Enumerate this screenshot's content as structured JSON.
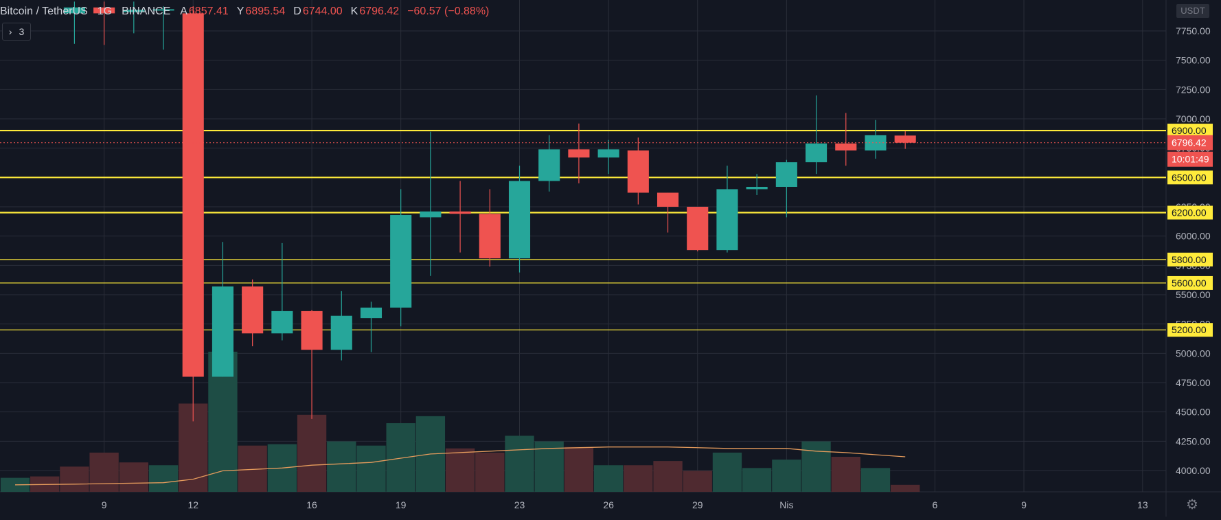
{
  "legend": {
    "symbol": "Bitcoin / TetherUS",
    "interval": "1G",
    "exchange": "BINANCE",
    "open_label": "A",
    "open": "6857.41",
    "high_label": "Y",
    "high": "6895.54",
    "low_label": "D",
    "low": "6744.00",
    "close_label": "K",
    "close": "6796.42",
    "change": "−60.57 (−0.88%)"
  },
  "indicator_toggle": {
    "count": "3",
    "icon": "chevron-right-icon"
  },
  "price_axis": {
    "unit": "USDT"
  },
  "current_price": {
    "label": "6796.42",
    "countdown": "10:01:49",
    "color": "#ef5350"
  },
  "settings_icon": "gear-icon",
  "chart_data": {
    "type": "candlestick",
    "ylim": [
      3850,
      8000
    ],
    "y_ticks": [
      4000,
      4250,
      4500,
      4750,
      5000,
      5250,
      5500,
      5750,
      6000,
      6250,
      6500,
      6750,
      7000,
      7250,
      7500,
      7750
    ],
    "y_tick_labels": [
      "4000.00",
      "4250.00",
      "4500.00",
      "4750.00",
      "5000.00",
      "5250.00",
      "5500.00",
      "5750.00",
      "6000.00",
      "6250.00",
      "6500.00",
      "6750.00",
      "7000.00",
      "7250.00",
      "7500.00",
      "7750.00"
    ],
    "x_tick_labels": [
      {
        "day": 9,
        "label": "9"
      },
      {
        "day": 12,
        "label": "12"
      },
      {
        "day": 16,
        "label": "16"
      },
      {
        "day": 19,
        "label": "19"
      },
      {
        "day": 23,
        "label": "23"
      },
      {
        "day": 26,
        "label": "26"
      },
      {
        "day": 29,
        "label": "29"
      },
      {
        "day": 32,
        "label": "Nis"
      },
      {
        "day": 37,
        "label": "6"
      },
      {
        "day": 40,
        "label": "9"
      },
      {
        "day": 44,
        "label": "13"
      }
    ],
    "day_range": [
      6,
      45.3
    ],
    "candles": [
      {
        "day": 8,
        "open": 7900,
        "high": 8000,
        "low": 7640,
        "close": 7950
      },
      {
        "day": 9,
        "open": 7950,
        "high": 8000,
        "low": 7630,
        "close": 7900
      },
      {
        "day": 10,
        "open": 7910,
        "high": 8000,
        "low": 7730,
        "close": 7930
      },
      {
        "day": 11,
        "open": 7925,
        "high": 7960,
        "low": 7590,
        "close": 7935
      },
      {
        "day": 12,
        "open": 7900,
        "high": 7960,
        "low": 4420,
        "close": 4800
      },
      {
        "day": 13,
        "open": 4800,
        "high": 5950,
        "low": 4800,
        "close": 5570
      },
      {
        "day": 14,
        "open": 5570,
        "high": 5630,
        "low": 5060,
        "close": 5170
      },
      {
        "day": 15,
        "open": 5170,
        "high": 5940,
        "low": 5110,
        "close": 5360
      },
      {
        "day": 16,
        "open": 5360,
        "high": 5370,
        "low": 4440,
        "close": 5030
      },
      {
        "day": 17,
        "open": 5030,
        "high": 5530,
        "low": 4940,
        "close": 5320
      },
      {
        "day": 18,
        "open": 5300,
        "high": 5440,
        "low": 5010,
        "close": 5390
      },
      {
        "day": 19,
        "open": 5390,
        "high": 6400,
        "low": 5230,
        "close": 6180
      },
      {
        "day": 20,
        "open": 6160,
        "high": 6890,
        "low": 5660,
        "close": 6210
      },
      {
        "day": 21,
        "open": 6210,
        "high": 6470,
        "low": 5860,
        "close": 6190
      },
      {
        "day": 22,
        "open": 6190,
        "high": 6400,
        "low": 5740,
        "close": 5810
      },
      {
        "day": 23,
        "open": 5810,
        "high": 6600,
        "low": 5690,
        "close": 6470
      },
      {
        "day": 24,
        "open": 6470,
        "high": 6860,
        "low": 6380,
        "close": 6740
      },
      {
        "day": 25,
        "open": 6740,
        "high": 6960,
        "low": 6450,
        "close": 6670
      },
      {
        "day": 26,
        "open": 6670,
        "high": 6820,
        "low": 6530,
        "close": 6740
      },
      {
        "day": 27,
        "open": 6730,
        "high": 6840,
        "low": 6270,
        "close": 6370
      },
      {
        "day": 28,
        "open": 6370,
        "high": 6370,
        "low": 6030,
        "close": 6250
      },
      {
        "day": 29,
        "open": 6250,
        "high": 6250,
        "low": 5870,
        "close": 5880
      },
      {
        "day": 30,
        "open": 5880,
        "high": 6600,
        "low": 5860,
        "close": 6400
      },
      {
        "day": 31,
        "open": 6400,
        "high": 6530,
        "low": 6350,
        "close": 6420
      },
      {
        "day": 32,
        "open": 6420,
        "high": 6650,
        "low": 6160,
        "close": 6630
      },
      {
        "day": 33,
        "open": 6630,
        "high": 7200,
        "low": 6530,
        "close": 6790
      },
      {
        "day": 34,
        "open": 6790,
        "high": 7050,
        "low": 6600,
        "close": 6730
      },
      {
        "day": 35,
        "open": 6730,
        "high": 6990,
        "low": 6660,
        "close": 6860
      },
      {
        "day": 36,
        "open": 6857.41,
        "high": 6895.54,
        "low": 6744.0,
        "close": 6796.42
      }
    ],
    "volume": {
      "max": 100,
      "values": [
        {
          "day": 6,
          "value": 10,
          "up": true
        },
        {
          "day": 7,
          "value": 11,
          "up": false
        },
        {
          "day": 8,
          "value": 18,
          "up": false
        },
        {
          "day": 9,
          "value": 28,
          "up": false
        },
        {
          "day": 10,
          "value": 21,
          "up": false
        },
        {
          "day": 11,
          "value": 19,
          "up": true
        },
        {
          "day": 12,
          "value": 63,
          "up": false
        },
        {
          "day": 13,
          "value": 100,
          "up": true
        },
        {
          "day": 14,
          "value": 33,
          "up": false
        },
        {
          "day": 15,
          "value": 34,
          "up": true
        },
        {
          "day": 16,
          "value": 55,
          "up": false
        },
        {
          "day": 17,
          "value": 36,
          "up": true
        },
        {
          "day": 18,
          "value": 33,
          "up": true
        },
        {
          "day": 19,
          "value": 49,
          "up": true
        },
        {
          "day": 20,
          "value": 54,
          "up": true
        },
        {
          "day": 21,
          "value": 31,
          "up": false
        },
        {
          "day": 22,
          "value": 28,
          "up": false
        },
        {
          "day": 23,
          "value": 40,
          "up": true
        },
        {
          "day": 24,
          "value": 36,
          "up": true
        },
        {
          "day": 25,
          "value": 32,
          "up": false
        },
        {
          "day": 26,
          "value": 19,
          "up": true
        },
        {
          "day": 27,
          "value": 19,
          "up": false
        },
        {
          "day": 28,
          "value": 22,
          "up": false
        },
        {
          "day": 29,
          "value": 15,
          "up": false
        },
        {
          "day": 30,
          "value": 28,
          "up": true
        },
        {
          "day": 31,
          "value": 17,
          "up": true
        },
        {
          "day": 32,
          "value": 23,
          "up": true
        },
        {
          "day": 33,
          "value": 36,
          "up": true
        },
        {
          "day": 34,
          "value": 25,
          "up": false
        },
        {
          "day": 35,
          "value": 17,
          "up": true
        },
        {
          "day": 36,
          "value": 5,
          "up": false
        }
      ],
      "ma": [
        {
          "day": 6,
          "value": 5
        },
        {
          "day": 8,
          "value": 5.5
        },
        {
          "day": 11,
          "value": 6.5
        },
        {
          "day": 12,
          "value": 9
        },
        {
          "day": 13,
          "value": 15
        },
        {
          "day": 15,
          "value": 17
        },
        {
          "day": 16,
          "value": 19
        },
        {
          "day": 17,
          "value": 20
        },
        {
          "day": 18,
          "value": 21
        },
        {
          "day": 19,
          "value": 24
        },
        {
          "day": 20,
          "value": 27
        },
        {
          "day": 22,
          "value": 29
        },
        {
          "day": 24,
          "value": 31
        },
        {
          "day": 26,
          "value": 32
        },
        {
          "day": 28,
          "value": 32
        },
        {
          "day": 30,
          "value": 31
        },
        {
          "day": 32,
          "value": 31
        },
        {
          "day": 33,
          "value": 29
        },
        {
          "day": 34,
          "value": 28
        },
        {
          "day": 36,
          "value": 25
        }
      ]
    },
    "horizontal_levels": [
      {
        "price": 6900,
        "label": "6900.00",
        "thick": true
      },
      {
        "price": 6500,
        "label": "6500.00",
        "thick": true
      },
      {
        "price": 6200,
        "label": "6200.00",
        "thick": true
      },
      {
        "price": 5800,
        "label": "5800.00",
        "thick": false
      },
      {
        "price": 5600,
        "label": "5600.00",
        "thick": false
      },
      {
        "price": 5200,
        "label": "5200.00",
        "thick": false
      }
    ],
    "colors": {
      "up": "#26a69a",
      "down": "#ef5350",
      "level": "#ffeb3b",
      "vol_up": "#1e4d45",
      "vol_down": "#4f2a30",
      "ma": "#e59b5c",
      "grid": "#2a2e39",
      "axis_text": "#b2b5be"
    }
  }
}
